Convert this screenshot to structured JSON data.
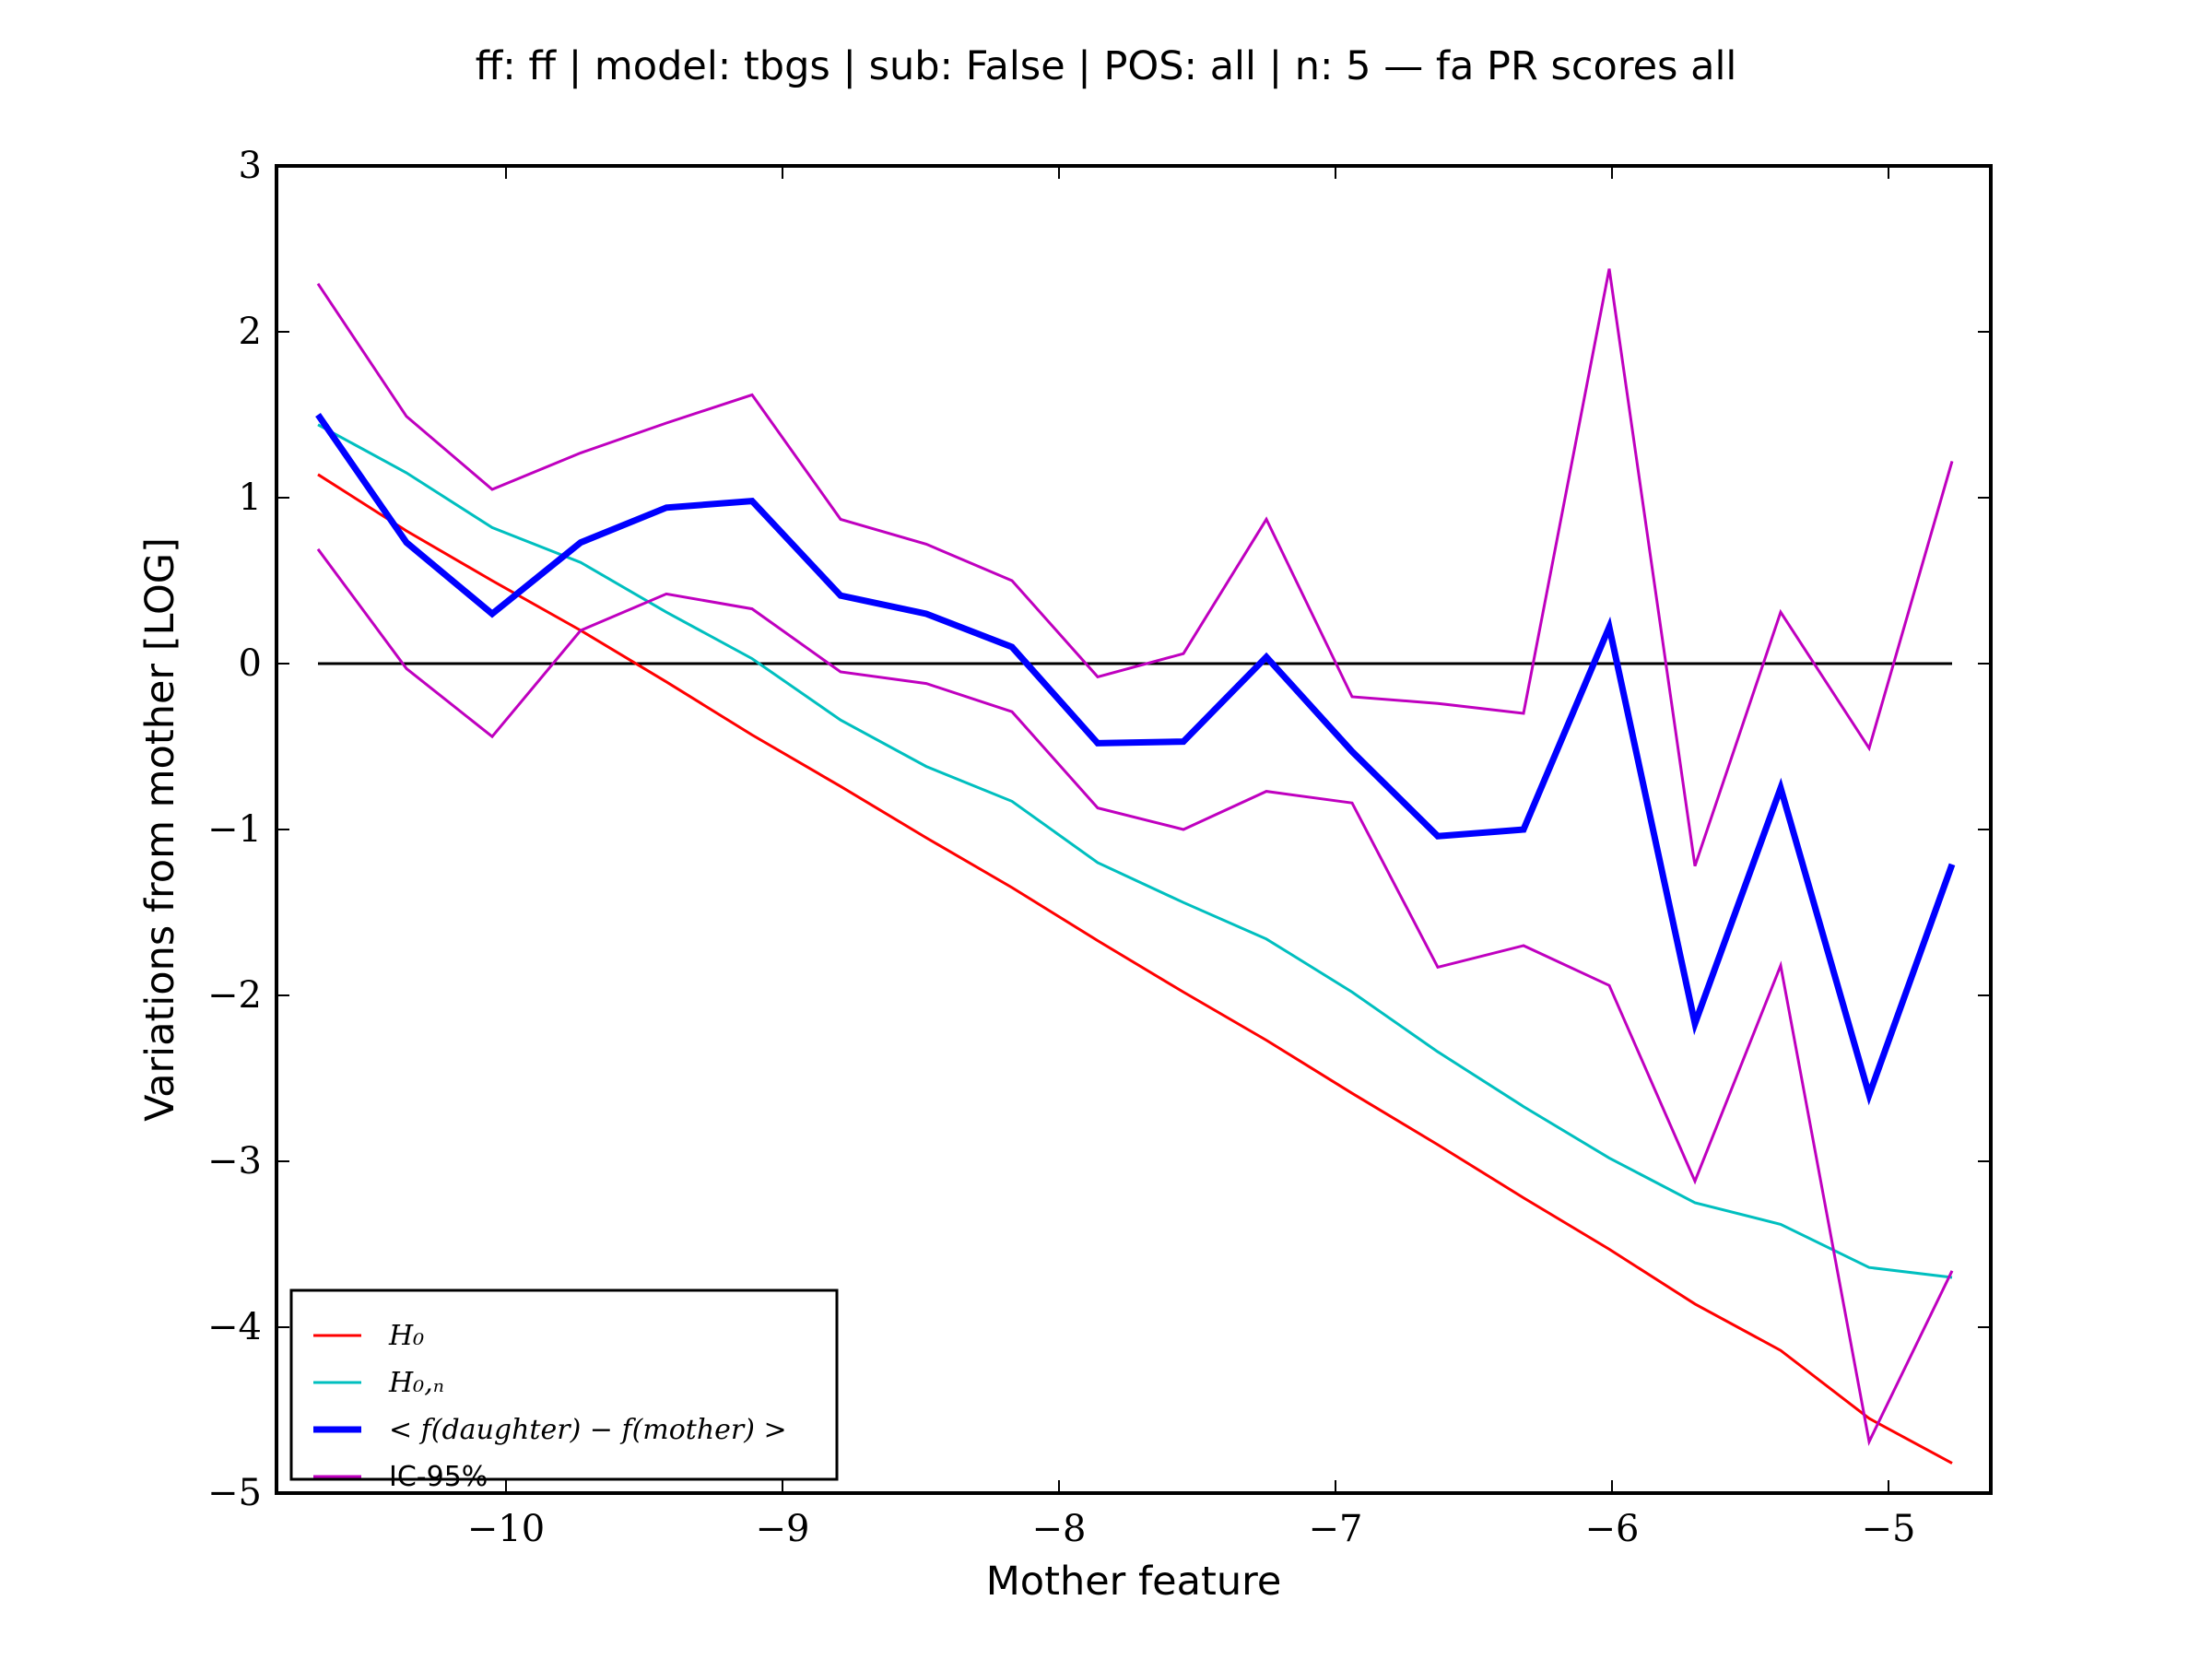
{
  "chart_data": {
    "type": "line",
    "title": "ff: ff | model: tbgs | sub: False | POS: all | n: 5 — fa PR scores all",
    "xlabel": "Mother feature",
    "ylabel": "Variations from mother [LOG]",
    "xlim": [
      -10.83,
      -4.63
    ],
    "ylim": [
      -5,
      3
    ],
    "xticks": [
      -10,
      -9,
      -8,
      -7,
      -6,
      -5
    ],
    "xtick_labels": [
      "−10",
      "−9",
      "−8",
      "−7",
      "−6",
      "−5"
    ],
    "yticks": [
      3,
      2,
      1,
      0,
      -1,
      -2,
      -3,
      -4,
      -5
    ],
    "ytick_labels": [
      "3",
      "2",
      "1",
      "0",
      "−1",
      "−2",
      "−3",
      "−4",
      "−5"
    ],
    "grid": false,
    "legend_position": "lower-left",
    "reference_line": {
      "y": 0,
      "color": "#000000"
    },
    "x": [
      -10.68,
      -10.36,
      -10.05,
      -9.73,
      -9.42,
      -9.11,
      -8.79,
      -8.48,
      -8.17,
      -7.86,
      -7.55,
      -7.25,
      -6.94,
      -6.63,
      -6.32,
      -6.01,
      -5.7,
      -5.39,
      -5.07,
      -4.77
    ],
    "series": [
      {
        "name": "H₀",
        "color": "#ff0000",
        "width": 3,
        "values": [
          1.14,
          0.8,
          0.5,
          0.2,
          -0.11,
          -0.43,
          -0.74,
          -1.05,
          -1.35,
          -1.67,
          -1.98,
          -2.27,
          -2.59,
          -2.9,
          -3.22,
          -3.53,
          -3.86,
          -4.14,
          -4.55,
          -4.82
        ]
      },
      {
        "name": "H₀,ₙ",
        "color": "#00bfbf",
        "width": 3,
        "values": [
          1.44,
          1.15,
          0.82,
          0.61,
          0.31,
          0.03,
          -0.34,
          -0.62,
          -0.83,
          -1.2,
          -1.44,
          -1.66,
          -1.98,
          -2.34,
          -2.67,
          -2.98,
          -3.25,
          -3.38,
          -3.64,
          -3.7
        ]
      },
      {
        "name": "< f(daughter) − f(mother) >",
        "color": "#0000ff",
        "width": 7,
        "values": [
          1.5,
          0.73,
          0.3,
          0.73,
          0.94,
          0.98,
          0.41,
          0.3,
          0.1,
          -0.48,
          -0.47,
          0.04,
          -0.53,
          -1.04,
          -1.0,
          0.22,
          -2.17,
          -0.75,
          -2.6,
          -1.21
        ]
      },
      {
        "name": "IC-95%",
        "color": "#bf00bf",
        "width": 3,
        "values": [
          2.29,
          1.49,
          1.05,
          1.27,
          1.45,
          1.62,
          0.87,
          0.72,
          0.5,
          -0.08,
          0.06,
          0.87,
          -0.2,
          -0.24,
          -0.3,
          2.38,
          -1.22,
          0.31,
          -0.51,
          1.22
        ]
      },
      {
        "name": "",
        "color": "#bf00bf",
        "width": 3,
        "values": [
          0.69,
          -0.03,
          -0.44,
          0.2,
          0.42,
          0.33,
          -0.05,
          -0.12,
          -0.29,
          -0.87,
          -1.0,
          -0.77,
          -0.84,
          -1.83,
          -1.7,
          -1.94,
          -3.12,
          -1.82,
          -4.69,
          -3.66
        ]
      }
    ]
  }
}
